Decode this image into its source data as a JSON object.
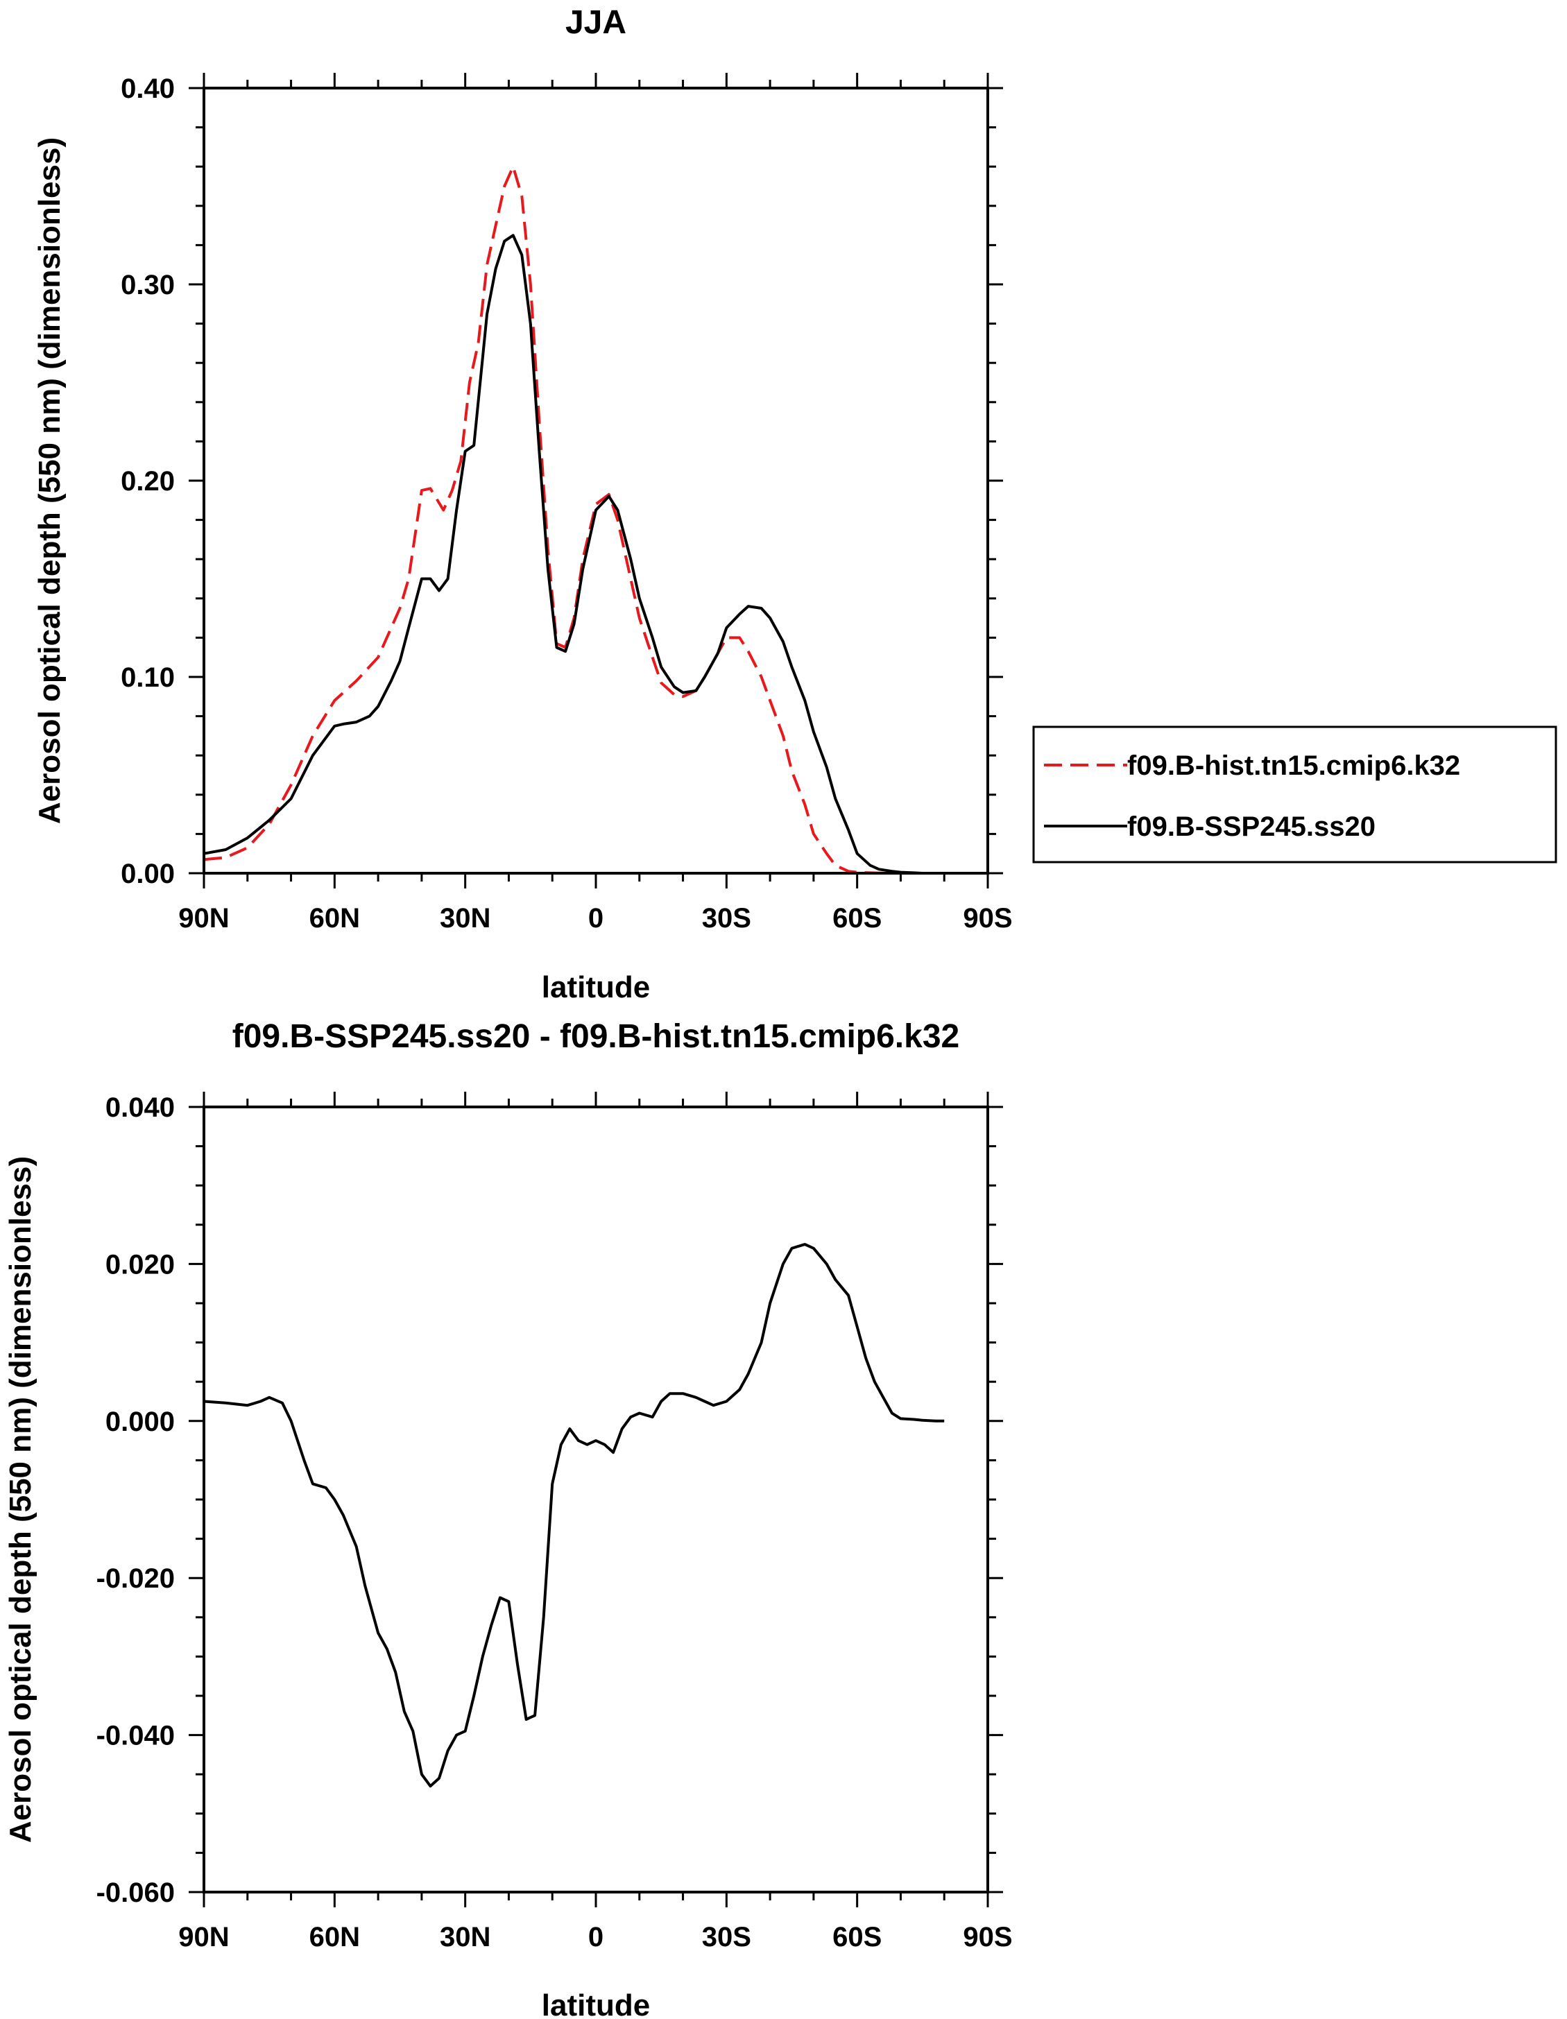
{
  "chart_data": [
    {
      "type": "line",
      "title": "JJA",
      "xlabel": "latitude",
      "ylabel": "Aerosol optical depth (550 nm) (dimensionless)",
      "x_ticks": [
        90,
        60,
        30,
        0,
        -30,
        -60,
        -90
      ],
      "x_tick_labels": [
        "90N",
        "60N",
        "30N",
        "0",
        "30S",
        "60S",
        "90S"
      ],
      "xlim": [
        90,
        -90
      ],
      "ylim": [
        0.0,
        0.4
      ],
      "y_ticks": [
        0.0,
        0.1,
        0.2,
        0.3,
        0.4
      ],
      "y_tick_labels": [
        "0.00",
        "0.10",
        "0.20",
        "0.30",
        "0.40"
      ],
      "legend_position": "right",
      "series": [
        {
          "name": "f09.B-hist.tn15.cmip6.k32",
          "color": "#e8191d",
          "dash": "dashed",
          "x": [
            90,
            85,
            80,
            75,
            70,
            65,
            60,
            55,
            50,
            45,
            43,
            40,
            38,
            35,
            33,
            31,
            29,
            27,
            25,
            23,
            21,
            19,
            17,
            15,
            13,
            11,
            9,
            7,
            5,
            3,
            0,
            -3,
            -5,
            -8,
            -10,
            -13,
            -15,
            -18,
            -20,
            -23,
            -25,
            -28,
            -30,
            -33,
            -35,
            -38,
            -40,
            -43,
            -45,
            -48,
            -50,
            -53,
            -55,
            -58,
            -60,
            -63,
            -65,
            -68,
            -70,
            -73,
            -75,
            -78,
            -80
          ],
          "y": [
            0.007,
            0.008,
            0.013,
            0.025,
            0.045,
            0.07,
            0.088,
            0.098,
            0.11,
            0.135,
            0.15,
            0.195,
            0.196,
            0.185,
            0.195,
            0.21,
            0.25,
            0.27,
            0.31,
            0.33,
            0.35,
            0.36,
            0.345,
            0.3,
            0.23,
            0.165,
            0.117,
            0.115,
            0.13,
            0.16,
            0.188,
            0.193,
            0.18,
            0.15,
            0.13,
            0.11,
            0.097,
            0.091,
            0.09,
            0.093,
            0.1,
            0.112,
            0.12,
            0.12,
            0.113,
            0.1,
            0.088,
            0.07,
            0.052,
            0.035,
            0.02,
            0.01,
            0.004,
            0.001,
            0.0005,
            0.0002,
            0.0001,
            0.0,
            0.0,
            0.0,
            0.0,
            0.0,
            0.0
          ]
        },
        {
          "name": "f09.B-SSP245.ss20",
          "color": "#000000",
          "dash": "solid",
          "x": [
            90,
            85,
            80,
            75,
            70,
            65,
            60,
            58,
            55,
            52,
            50,
            47,
            45,
            43,
            40,
            38,
            36,
            34,
            32,
            30,
            28,
            25,
            23,
            21,
            19,
            17,
            15,
            13,
            11,
            9,
            7,
            5,
            3,
            0,
            -3,
            -5,
            -8,
            -10,
            -13,
            -15,
            -18,
            -20,
            -23,
            -25,
            -28,
            -30,
            -33,
            -35,
            -38,
            -40,
            -43,
            -45,
            -48,
            -50,
            -53,
            -55,
            -58,
            -60,
            -63,
            -65,
            -68,
            -70,
            -73,
            -75,
            -78,
            -80
          ],
          "y": [
            0.01,
            0.012,
            0.018,
            0.027,
            0.038,
            0.06,
            0.075,
            0.076,
            0.077,
            0.08,
            0.085,
            0.098,
            0.108,
            0.125,
            0.15,
            0.15,
            0.144,
            0.15,
            0.185,
            0.215,
            0.218,
            0.285,
            0.308,
            0.322,
            0.325,
            0.315,
            0.28,
            0.215,
            0.155,
            0.115,
            0.113,
            0.127,
            0.155,
            0.185,
            0.192,
            0.185,
            0.16,
            0.14,
            0.12,
            0.105,
            0.095,
            0.092,
            0.093,
            0.1,
            0.112,
            0.125,
            0.132,
            0.136,
            0.135,
            0.13,
            0.118,
            0.105,
            0.088,
            0.072,
            0.054,
            0.038,
            0.022,
            0.01,
            0.004,
            0.002,
            0.001,
            0.0005,
            0.0002,
            0.0,
            0.0,
            0.0
          ]
        }
      ]
    },
    {
      "type": "line",
      "title": "f09.B-SSP245.ss20 - f09.B-hist.tn15.cmip6.k32",
      "xlabel": "latitude",
      "ylabel": "Aerosol optical depth (550 nm) (dimensionless)",
      "x_ticks": [
        90,
        60,
        30,
        0,
        -30,
        -60,
        -90
      ],
      "x_tick_labels": [
        "90N",
        "60N",
        "30N",
        "0",
        "30S",
        "60S",
        "90S"
      ],
      "xlim": [
        90,
        -90
      ],
      "ylim": [
        -0.06,
        0.04
      ],
      "y_ticks": [
        -0.06,
        -0.04,
        -0.02,
        0.0,
        0.02,
        0.04
      ],
      "y_tick_labels": [
        "-0.060",
        "-0.040",
        "-0.020",
        "0.000",
        "0.020",
        "0.040"
      ],
      "series": [
        {
          "color": "#000000",
          "dash": "solid",
          "x": [
            90,
            85,
            80,
            77,
            75,
            72,
            70,
            67,
            65,
            62,
            60,
            58,
            55,
            53,
            50,
            48,
            46,
            44,
            42,
            40,
            38,
            36,
            34,
            32,
            30,
            28,
            26,
            24,
            22,
            20,
            18,
            16,
            14,
            12,
            10,
            8,
            6,
            4,
            2,
            0,
            -2,
            -4,
            -6,
            -8,
            -10,
            -13,
            -15,
            -17,
            -20,
            -23,
            -25,
            -27,
            -30,
            -33,
            -35,
            -38,
            -40,
            -43,
            -45,
            -48,
            -50,
            -53,
            -55,
            -58,
            -60,
            -62,
            -64,
            -66,
            -68,
            -70,
            -73,
            -75,
            -78,
            -80
          ],
          "y": [
            0.0025,
            0.0023,
            0.002,
            0.0025,
            0.003,
            0.0023,
            0.0,
            -0.005,
            -0.008,
            -0.0085,
            -0.01,
            -0.012,
            -0.016,
            -0.021,
            -0.027,
            -0.029,
            -0.032,
            -0.037,
            -0.0395,
            -0.045,
            -0.0465,
            -0.0455,
            -0.042,
            -0.04,
            -0.0395,
            -0.035,
            -0.03,
            -0.026,
            -0.0225,
            -0.023,
            -0.031,
            -0.038,
            -0.0375,
            -0.025,
            -0.008,
            -0.003,
            -0.001,
            -0.0025,
            -0.003,
            -0.0025,
            -0.003,
            -0.004,
            -0.001,
            0.0005,
            0.001,
            0.0005,
            0.0025,
            0.0035,
            0.0035,
            0.003,
            0.0025,
            0.002,
            0.0025,
            0.004,
            0.006,
            0.01,
            0.015,
            0.02,
            0.022,
            0.0225,
            0.022,
            0.02,
            0.018,
            0.016,
            0.012,
            0.008,
            0.005,
            0.003,
            0.001,
            0.0003,
            0.0002,
            0.0001,
            0.0,
            0.0
          ]
        }
      ]
    }
  ]
}
